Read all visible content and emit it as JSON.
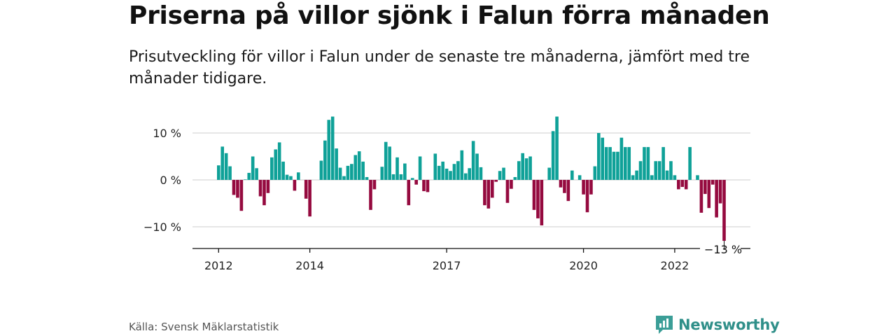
{
  "header": {
    "title": "Priserna på villor sjönk i Falun förra månaden",
    "subtitle": "Prisutveckling för villor i Falun under de senaste tre månaderna, jämfört med tre månader tidigare."
  },
  "footer": {
    "source": "Källa: Svensk Mäklarstatistik",
    "brand": "Newsworthy"
  },
  "colors": {
    "positive": "#0fa198",
    "negative": "#950a3f",
    "grid": "#dddddd",
    "axis": "#111111",
    "brand": "#2f8f89"
  },
  "chart_data": {
    "type": "bar",
    "title": "Priserna på villor sjönk i Falun förra månaden",
    "subtitle": "Prisutveckling för villor i Falun under de senaste tre månaderna, jämfört med tre månader tidigare.",
    "xlabel": "",
    "ylabel": "",
    "ylim": [
      -15,
      15
    ],
    "y_ticks": [
      -10,
      0,
      10
    ],
    "y_tick_labels": [
      "−10 %",
      "0 %",
      "10 %"
    ],
    "x_ticks": [
      "2012",
      "2014",
      "2017",
      "2020",
      "2022"
    ],
    "grid": true,
    "legend": "none",
    "last_value_label": "−13 %",
    "start": "2012-01",
    "end": "2023-01",
    "series": [
      {
        "values": [
          3.1,
          7.1,
          5.7,
          2.9,
          -3.2,
          -3.8,
          -6.6,
          0.1,
          1.5,
          5.0,
          2.5,
          -3.5,
          -5.4,
          -2.8,
          4.8,
          6.5,
          8.0,
          3.9,
          1.1,
          0.8,
          -2.3,
          1.6,
          0.0,
          -4.0,
          -7.8,
          0.0,
          0.0,
          4.1,
          8.4,
          12.8,
          13.5,
          6.7,
          2.6,
          0.8,
          3.0,
          3.4,
          5.3,
          6.1,
          3.9,
          0.6,
          -6.4,
          -2.0,
          0.0,
          2.8,
          8.1,
          7.1,
          1.2,
          4.8,
          1.2,
          3.5,
          -5.4,
          0.4,
          -1.0,
          5.0,
          -2.4,
          -2.6,
          0.0,
          5.6,
          3.0,
          3.9,
          2.4,
          1.9,
          3.4,
          4.0,
          6.3,
          1.4,
          2.5,
          8.3,
          5.6,
          2.7,
          -5.4,
          -6.1,
          -3.8,
          -0.4,
          1.9,
          2.6,
          -4.9,
          -1.9,
          0.6,
          4.0,
          5.7,
          4.6,
          5.0,
          -6.4,
          -8.2,
          -9.7,
          0.0,
          2.6,
          10.4,
          13.5,
          -1.6,
          -2.8,
          -4.5,
          2.0,
          0.0,
          1.0,
          -3.1,
          -6.9,
          -3.1,
          2.9,
          10.0,
          9.0,
          7.0,
          7.0,
          6.0,
          6.0,
          9.0,
          7.0,
          7.0,
          1.0,
          2.0,
          4.0,
          7.0,
          7.0,
          1.0,
          4.0,
          4.0,
          7.0,
          2.0,
          4.0,
          1.0,
          -2.0,
          -1.5,
          -2.0,
          7.0,
          0.0,
          1.0,
          -7.0,
          -3.0,
          -6.0,
          -1.0,
          -8.0,
          -5.0,
          -13.0
        ]
      }
    ]
  }
}
